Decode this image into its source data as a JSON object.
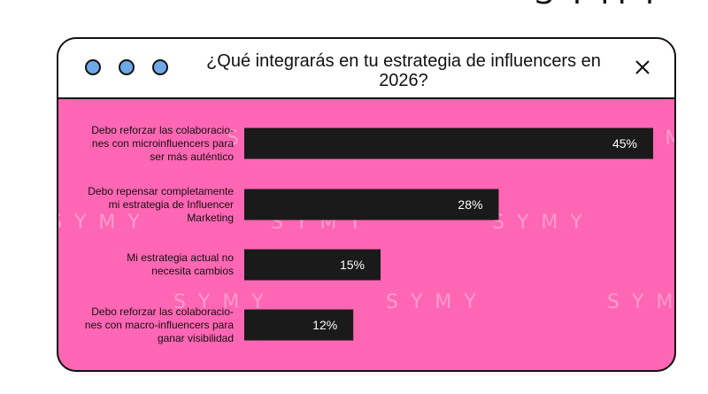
{
  "brand": "SYMY",
  "window": {
    "title": "¿Qué integrarás en tu estrategia de influencers en 2026?"
  },
  "colors": {
    "panel_background": "#ff66b3",
    "bar_fill": "#1a1a1a",
    "dot_fill": "#6fa8e6"
  },
  "chart_data": {
    "type": "bar",
    "orientation": "horizontal",
    "title": "¿Qué integrarás en tu estrategia de influencers en 2026?",
    "categories": [
      "Debo reforzar las colaboraciones con microinfluencers para ser más auténtico",
      "Debo repensar completamente mi estrategia de Influencer Marketing",
      "Mi estrategia actual no necesita cambios",
      "Debo reforzar las colaboraciones con macro-influencers para ganar visibilidad"
    ],
    "category_lines": [
      [
        "Debo reforzar las colaboracio-",
        "nes con microinfluencers para",
        "ser más auténtico"
      ],
      [
        "Debo repensar completamente",
        "mi estrategia de Influencer",
        "Marketing"
      ],
      [
        "Mi estrategia actual no",
        "necesita cambios"
      ],
      [
        "Debo reforzar las colaboracio-",
        "nes con macro-influencers para",
        "ganar visibilidad"
      ]
    ],
    "values": [
      45,
      28,
      15,
      12
    ],
    "value_labels": [
      "45%",
      "28%",
      "15%",
      "12%"
    ],
    "unit": "%",
    "xlim": [
      0,
      45
    ],
    "grid": false,
    "legend": "none"
  }
}
